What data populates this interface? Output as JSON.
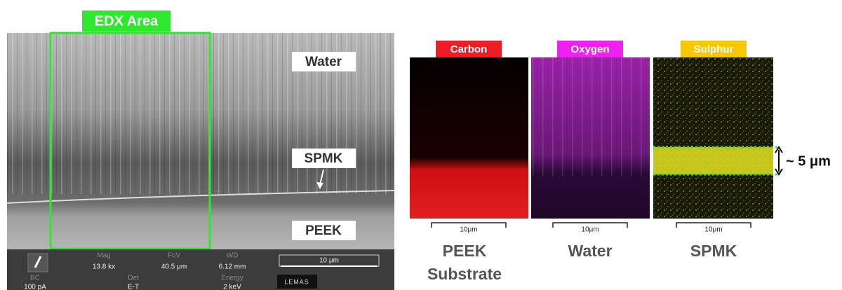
{
  "sem": {
    "badge": "EDX Area",
    "labels": [
      "Water",
      "SPMK",
      "PEEK"
    ],
    "info_top": [
      {
        "name": "Mag",
        "value": "13.8 kx"
      },
      {
        "name": "FoV",
        "value": "40.5 μm"
      },
      {
        "name": "WD",
        "value": "6.12 mm"
      }
    ],
    "info_bottom": [
      {
        "name": "BC",
        "value": "100 pA"
      },
      {
        "name": "Det",
        "value": "E-T"
      },
      {
        "name": "Energy",
        "value": "2 keV"
      }
    ],
    "scale_bar": "10 μm",
    "logo": "LEMAS"
  },
  "maps": [
    {
      "element": "Carbon",
      "scale": "10μm",
      "caption": [
        "PEEK",
        "Substrate"
      ]
    },
    {
      "element": "Oxygen",
      "scale": "10μm",
      "caption": [
        "Water"
      ]
    },
    {
      "element": "Sulphur",
      "scale": "10μm",
      "caption": [
        "SPMK"
      ]
    }
  ],
  "thickness": "~ 5 μm"
}
